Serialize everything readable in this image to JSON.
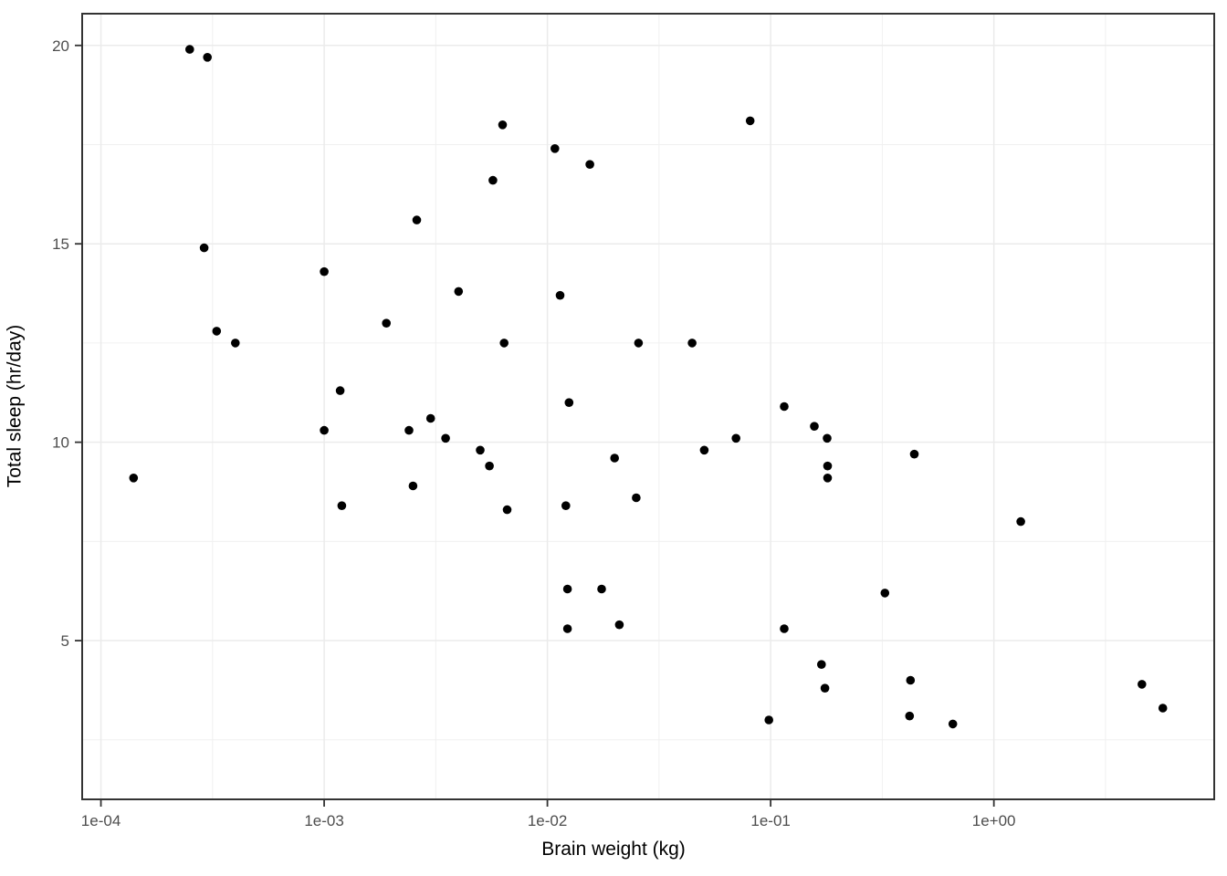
{
  "figure": {
    "background": "#ffffff",
    "panel": {
      "background": "#ffffff",
      "border_color": "#333333",
      "grid_major_color": "#ebebeb",
      "grid_minor_color": "#f0f0f0",
      "tick_color": "#333333",
      "tick_label_color": "#4d4d4d"
    }
  },
  "chart_data": {
    "type": "scatter",
    "title": "",
    "xlabel": "Brain weight (kg)",
    "ylabel": "Total sleep (hr/day)",
    "x_scale": "log10",
    "grid": true,
    "legend_position": "none",
    "point_color": "#000000",
    "point_radius_px": 4.8,
    "x_tick_labels": [
      "1e-04",
      "1e-03",
      "1e-02",
      "1e-01",
      "1e+00"
    ],
    "x_tick_values": [
      0.0001,
      0.001,
      0.01,
      0.1,
      1
    ],
    "y_tick_labels": [
      "5",
      "10",
      "15",
      "20"
    ],
    "y_tick_values": [
      5,
      10,
      15,
      20
    ],
    "x_domain_log10": [
      -4.084,
      0.987
    ],
    "y_domain": [
      1.0,
      20.8
    ],
    "points": [
      [
        0.00014,
        9.1
      ],
      [
        0.00025,
        19.9
      ],
      [
        0.00029,
        14.9
      ],
      [
        0.0003,
        19.7
      ],
      [
        0.00033,
        12.8
      ],
      [
        0.0004,
        12.5
      ],
      [
        0.001,
        14.3
      ],
      [
        0.001,
        10.3
      ],
      [
        0.00118,
        11.3
      ],
      [
        0.0012,
        8.4
      ],
      [
        0.0019,
        13.0
      ],
      [
        0.0024,
        10.3
      ],
      [
        0.0025,
        8.9
      ],
      [
        0.0026,
        15.6
      ],
      [
        0.003,
        10.6
      ],
      [
        0.0035,
        10.1
      ],
      [
        0.004,
        13.8
      ],
      [
        0.005,
        9.8
      ],
      [
        0.0055,
        9.4
      ],
      [
        0.0057,
        16.6
      ],
      [
        0.0063,
        18.0
      ],
      [
        0.0064,
        12.5
      ],
      [
        0.0066,
        8.3
      ],
      [
        0.0108,
        17.4
      ],
      [
        0.0114,
        13.7
      ],
      [
        0.0121,
        8.4
      ],
      [
        0.0123,
        6.3
      ],
      [
        0.0123,
        5.3
      ],
      [
        0.0125,
        11.0
      ],
      [
        0.0155,
        17.0
      ],
      [
        0.0175,
        6.3
      ],
      [
        0.02,
        9.6
      ],
      [
        0.021,
        5.4
      ],
      [
        0.025,
        8.6
      ],
      [
        0.0256,
        12.5
      ],
      [
        0.0445,
        12.5
      ],
      [
        0.0504,
        9.8
      ],
      [
        0.07,
        10.1
      ],
      [
        0.081,
        18.1
      ],
      [
        0.0982,
        3.0
      ],
      [
        0.115,
        10.9
      ],
      [
        0.115,
        5.3
      ],
      [
        0.157,
        10.4
      ],
      [
        0.169,
        4.4
      ],
      [
        0.175,
        3.8
      ],
      [
        0.179,
        10.1
      ],
      [
        0.18,
        9.4
      ],
      [
        0.18,
        9.1
      ],
      [
        0.325,
        6.2
      ],
      [
        0.419,
        3.1
      ],
      [
        0.423,
        4.0
      ],
      [
        0.44,
        9.7
      ],
      [
        0.655,
        2.9
      ],
      [
        1.32,
        8.0
      ],
      [
        4.603,
        3.9
      ],
      [
        5.712,
        3.3
      ]
    ]
  }
}
